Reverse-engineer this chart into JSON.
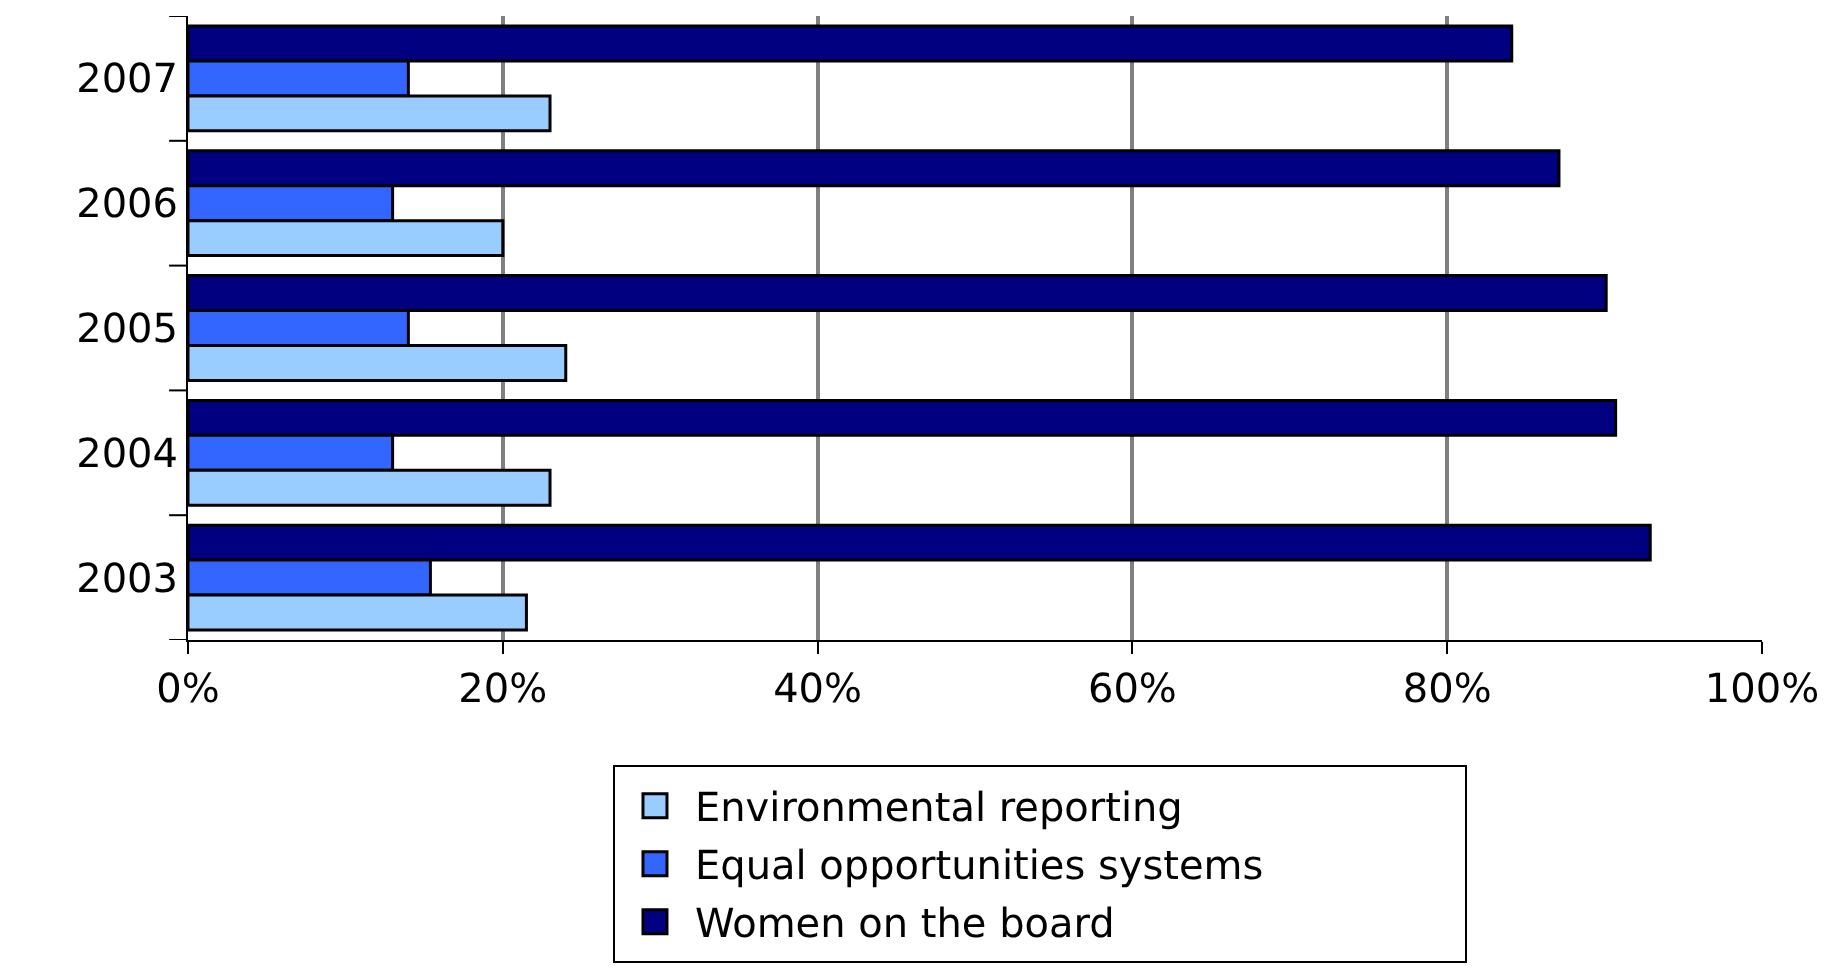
{
  "chart_data": {
    "type": "bar",
    "orientation": "horizontal",
    "categories": [
      "2007",
      "2006",
      "2005",
      "2004",
      "2003"
    ],
    "series": [
      {
        "name": "Environmental reporting",
        "color": "#99ccff",
        "values": [
          23,
          20,
          24,
          23,
          21.5
        ]
      },
      {
        "name": "Equal opportunities systems",
        "color": "#3366ff",
        "values": [
          14,
          13,
          14,
          13,
          15.4
        ]
      },
      {
        "name": "Women on the board",
        "color": "#000080",
        "values": [
          84.1,
          87.1,
          90.1,
          90.7,
          92.9
        ]
      }
    ],
    "xlim": [
      0,
      100
    ],
    "xticks": [
      {
        "value": 0,
        "label": "0%"
      },
      {
        "value": 20,
        "label": "20%"
      },
      {
        "value": 40,
        "label": "40%"
      },
      {
        "value": 60,
        "label": "60%"
      },
      {
        "value": 80,
        "label": "80%"
      },
      {
        "value": 100,
        "label": "100%"
      }
    ],
    "grid": "x",
    "legend": "bottom"
  }
}
